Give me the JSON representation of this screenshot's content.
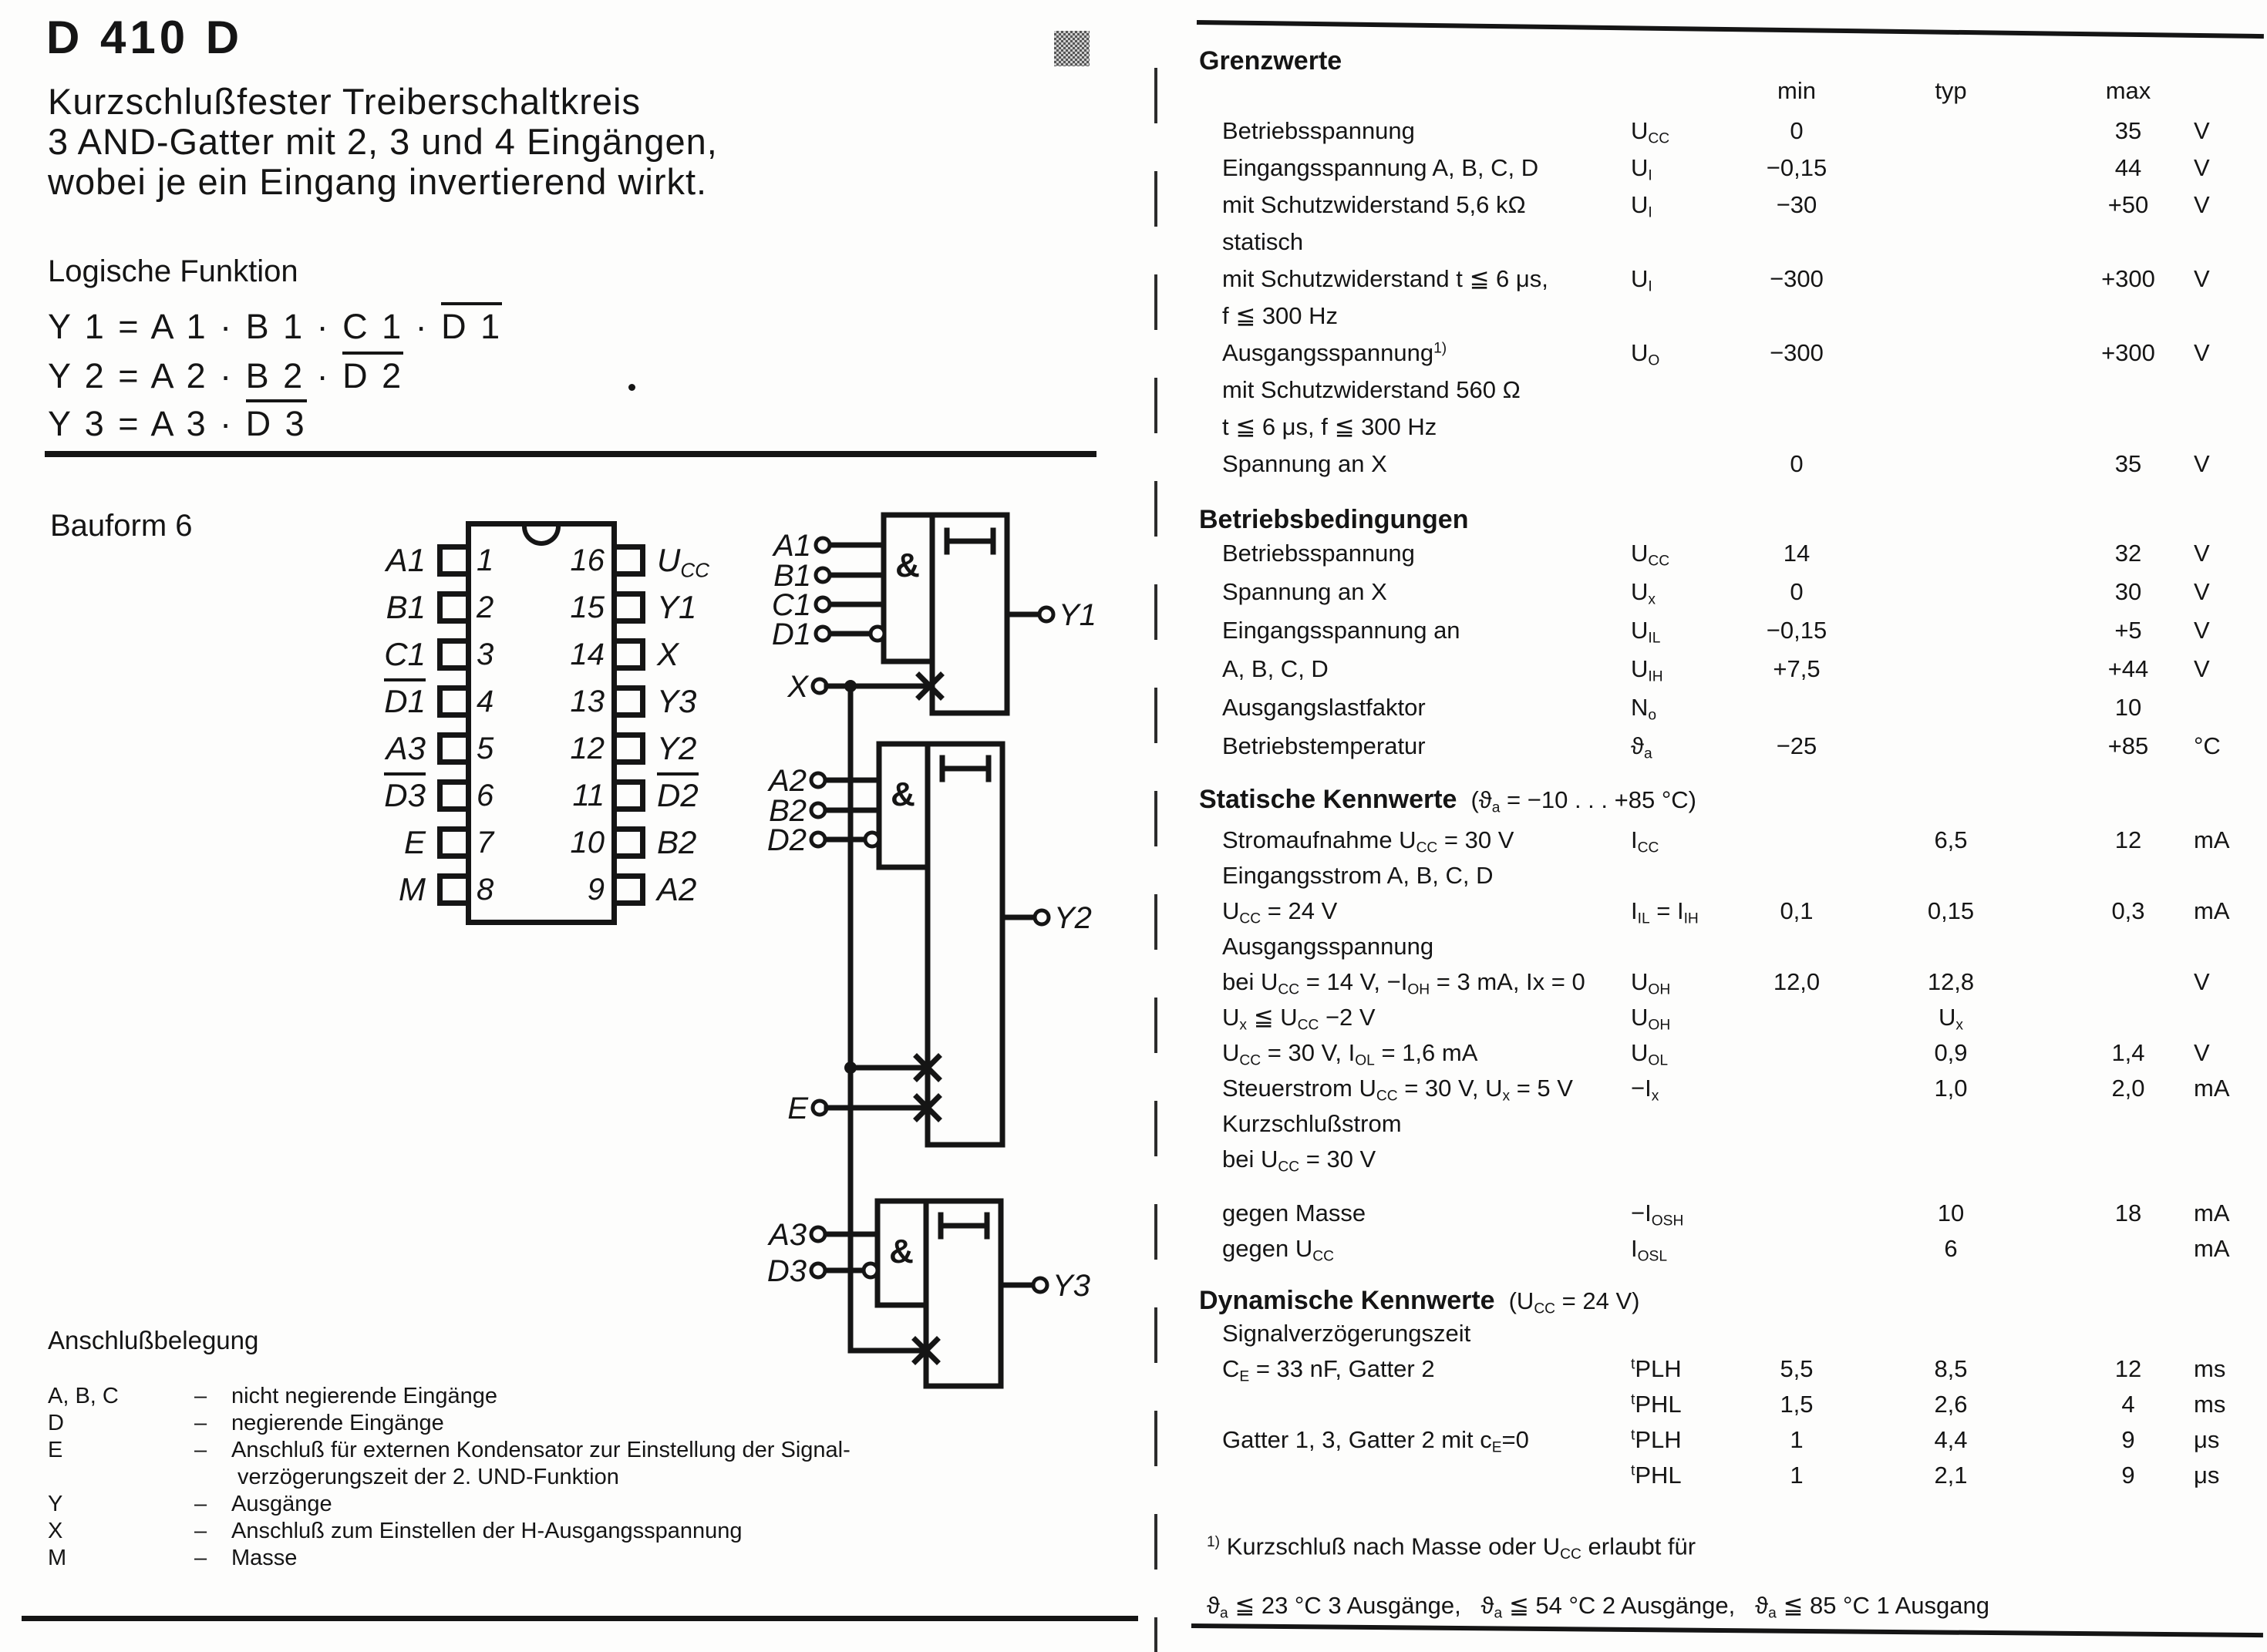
{
  "colors": {
    "ink": "#151515",
    "paper": "#fdfdfc"
  },
  "header": {
    "part_number": "D 410 D",
    "description_lines": [
      "Kurzschlußfester Treiberschaltkreis",
      "3 AND-Gatter mit 2, 3 und 4 Eingängen,",
      "wobei je ein Eingang invertierend wirkt."
    ]
  },
  "logic": {
    "heading": "Logische Funktion",
    "equations": [
      "Y 1 = A 1 · B 1 · C 1 · ~{D 1}",
      "Y 2 = A 2 · B 2 · ~{D 2}",
      "Y 3 = A 3 · ~{D 3}"
    ]
  },
  "package": {
    "bauform": "Bauform 6",
    "left_pins": [
      {
        "num": "1",
        "label": "A1"
      },
      {
        "num": "2",
        "label": "B1"
      },
      {
        "num": "3",
        "label": "C1"
      },
      {
        "num": "4",
        "label": "~{D1}"
      },
      {
        "num": "5",
        "label": "A3"
      },
      {
        "num": "6",
        "label": "~{D3}"
      },
      {
        "num": "7",
        "label": "E"
      },
      {
        "num": "8",
        "label": "M"
      }
    ],
    "right_pins": [
      {
        "num": "16",
        "label": "U_{CC}"
      },
      {
        "num": "15",
        "label": "Y1"
      },
      {
        "num": "14",
        "label": "X"
      },
      {
        "num": "13",
        "label": "Y3"
      },
      {
        "num": "12",
        "label": "Y2"
      },
      {
        "num": "11",
        "label": "~{D2}"
      },
      {
        "num": "10",
        "label": "B2"
      },
      {
        "num": "9",
        "label": "A2"
      }
    ]
  },
  "schematic": {
    "and_symbol": "&",
    "x_terminal": "X",
    "e_terminal": "E",
    "gate1": {
      "inputs": [
        "A1",
        "B1",
        "C1",
        "D1"
      ],
      "output": "Y1"
    },
    "gate2": {
      "inputs": [
        "A2",
        "B2",
        "D2"
      ],
      "output": "Y2"
    },
    "gate3": {
      "inputs": [
        "A3",
        "D3"
      ],
      "output": "Y3"
    }
  },
  "pin_legend": {
    "heading": "Anschlußbelegung",
    "dash": "–",
    "items": [
      {
        "term": "A, B, C",
        "desc": "nicht negierende Eingänge"
      },
      {
        "term": "D",
        "desc": "negierende Eingänge"
      },
      {
        "term": "E",
        "desc": "Anschluß für externen Kondensator zur Einstellung der Signal-",
        "desc2": "verzögerungszeit der 2. UND-Funktion"
      },
      {
        "term": "Y",
        "desc": "Ausgänge"
      },
      {
        "term": "X",
        "desc": "Anschluß zum Einstellen der H-Ausgangsspannung"
      },
      {
        "term": "M",
        "desc": "Masse"
      }
    ]
  },
  "specs": {
    "col_headers": {
      "min": "min",
      "typ": "typ",
      "max": "max"
    },
    "sections": [
      {
        "id": "grenzwerte",
        "heading": "Grenzwerte",
        "note": "",
        "rows": [
          {
            "label": "Betriebsspannung",
            "sym": "U_{CC}",
            "min": "0",
            "typ": "",
            "max": "35",
            "unit": "V"
          },
          {
            "label": "Eingangsspannung A, B, C, D",
            "sym": "U_{I}",
            "min": "−0,15",
            "typ": "",
            "max": "44",
            "unit": "V"
          },
          {
            "label": "mit Schutzwiderstand 5,6 kΩ",
            "sym": "U_{I}",
            "min": "−30",
            "typ": "",
            "max": "+50",
            "unit": "V"
          },
          {
            "label": "statisch"
          },
          {
            "label": "mit Schutzwiderstand t ≦ 6 μs,",
            "sym": "U_{I}",
            "min": "−300",
            "typ": "",
            "max": "+300",
            "unit": "V"
          },
          {
            "label": "f ≦ 300 Hz"
          },
          {
            "label": "Ausgangsspannung^{1)}",
            "sym": "U_{O}",
            "min": "−300",
            "typ": "",
            "max": "+300",
            "unit": "V"
          },
          {
            "label": "mit Schutzwiderstand 560 Ω"
          },
          {
            "label": "t ≦ 6 μs, f ≦ 300 Hz"
          },
          {
            "label": "Spannung an X",
            "sym": "",
            "min": "0",
            "typ": "",
            "max": "35",
            "unit": "V"
          }
        ]
      },
      {
        "id": "betriebsbedingungen",
        "heading": "Betriebsbedingungen",
        "note": "",
        "rows": [
          {
            "label": "Betriebsspannung",
            "sym": "U_{CC}",
            "min": "14",
            "typ": "",
            "max": "32",
            "unit": "V"
          },
          {
            "label": "Spannung an X",
            "sym": "U_{x}",
            "min": "0",
            "typ": "",
            "max": "30",
            "unit": "V"
          },
          {
            "label": "Eingangsspannung an",
            "sym": "U_{IL}",
            "min": "−0,15",
            "typ": "",
            "max": "+5",
            "unit": "V"
          },
          {
            "label": "A, B, C, D",
            "sym": "U_{IH}",
            "min": "+7,5",
            "typ": "",
            "max": "+44",
            "unit": "V"
          },
          {
            "label": "Ausgangslastfaktor",
            "sym": "N_{o}",
            "min": "",
            "typ": "",
            "max": "10",
            "unit": ""
          },
          {
            "label": "Betriebstemperatur",
            "sym": "ϑ_{a}",
            "min": "−25",
            "typ": "",
            "max": "+85",
            "unit": "°C"
          }
        ]
      },
      {
        "id": "statische",
        "heading": "Statische Kennwerte",
        "note": "(ϑ_{a} = −10 . . . +85 °C)",
        "rows": [
          {
            "label": "Stromaufnahme U_{CC} = 30 V",
            "sym": "I_{CC}",
            "min": "",
            "typ": "6,5",
            "max": "12",
            "unit": "mA"
          },
          {
            "label": "Eingangsstrom A, B, C, D"
          },
          {
            "label": "U_{CC} = 24 V",
            "sym": "I_{IL} = I_{IH}",
            "min": "0,1",
            "typ": "0,15",
            "max": "0,3",
            "unit": "mA"
          },
          {
            "label": "Ausgangsspannung"
          },
          {
            "label": "bei U_{CC} = 14 V, −I_{OH} = 3 mA, Ix = 0",
            "sym": "U_{OH}",
            "min": "12,0",
            "typ": "12,8",
            "max": "",
            "unit": "V"
          },
          {
            "label": "U_{x} ≦ U_{CC} −2 V",
            "sym": "U_{OH}",
            "min": "",
            "typ": "U_{x}",
            "max": "",
            "unit": ""
          },
          {
            "label": "U_{CC} = 30 V, I_{OL} = 1,6 mA",
            "sym": "U_{OL}",
            "min": "",
            "typ": "0,9",
            "max": "1,4",
            "unit": "V"
          },
          {
            "label": "Steuerstrom U_{CC} = 30 V, U_{x} = 5 V",
            "sym": "−I_{x}",
            "min": "",
            "typ": "1,0",
            "max": "2,0",
            "unit": "mA"
          },
          {
            "label": "Kurzschlußstrom"
          },
          {
            "label": "bei U_{CC} = 30 V"
          },
          {
            "spacer": true
          },
          {
            "label": "gegen Masse",
            "sym": "−I_{OSH}",
            "min": "",
            "typ": "10",
            "max": "18",
            "unit": "mA"
          },
          {
            "label": "gegen U_{CC}",
            "sym": "I_{OSL}",
            "min": "",
            "typ": "6",
            "max": "",
            "unit": "mA"
          }
        ]
      },
      {
        "id": "dynamische",
        "heading": "Dynamische Kennwerte",
        "note": "(U_{CC} = 24 V)",
        "rows": [
          {
            "label": "Signalverzögerungszeit"
          },
          {
            "label": "C_{E} = 33 nF, Gatter 2",
            "sym": "^{t}PLH",
            "min": "5,5",
            "typ": "8,5",
            "max": "12",
            "unit": "ms"
          },
          {
            "label": "",
            "sym": "^{t}PHL",
            "min": "1,5",
            "typ": "2,6",
            "max": "4",
            "unit": "ms"
          },
          {
            "label": "Gatter 1, 3, Gatter 2 mit c_{E}=0",
            "sym": "^{t}PLH",
            "min": "1",
            "typ": "4,4",
            "max": "9",
            "unit": "μs"
          },
          {
            "label": "",
            "sym": "^{t}PHL",
            "min": "1",
            "typ": "2,1",
            "max": "9",
            "unit": "μs"
          }
        ]
      }
    ],
    "footnote_lines": [
      "^{1)} Kurzschluß nach Masse oder U_{CC} erlaubt für",
      "ϑ_{a} ≦ 23 °C  3 Ausgänge,   ϑ_{a} ≦ 54 °C  2 Ausgänge,   ϑ_{a} ≦ 85 °C  1 Ausgang"
    ]
  }
}
